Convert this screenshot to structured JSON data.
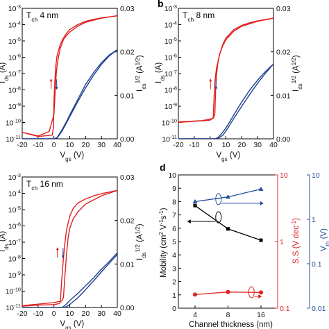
{
  "chart_data": [
    {
      "panel": "a",
      "type": "line",
      "title": "T_ch 4 nm",
      "title_parts": [
        "T",
        "ch",
        " 4 nm"
      ],
      "panel_letter": "",
      "xlabel": [
        "V",
        "gs",
        " (V)"
      ],
      "ylabel_left": [
        "I",
        "ds",
        " (A)"
      ],
      "ylabel_right": [
        "I",
        "ds",
        "1/2",
        " (A",
        "1/2",
        ")"
      ],
      "xlim": [
        -20,
        40
      ],
      "ylim_left_log": [
        1e-11,
        0.001
      ],
      "ylim_right": [
        0,
        0.03
      ],
      "x_ticks": [
        "-20",
        "-10",
        "0",
        "10",
        "20",
        "30",
        "40"
      ],
      "y_left_ticks": [
        "10-3",
        "10-4",
        "10-5",
        "10-6",
        "10-7",
        "10-8",
        "10-9",
        "10-10",
        "10-11"
      ],
      "y_right_ticks": [
        "0.00",
        "0.01",
        "0.02",
        "0.03"
      ],
      "series": [
        {
          "axis": "left",
          "color": "#e02020",
          "forward": {
            "x": [
              -20,
              -10,
              -3,
              -1,
              -0.2,
              0,
              0.5,
              1,
              2,
              4,
              6,
              8,
              10,
              15,
              20,
              25,
              30,
              35,
              40
            ],
            "y": [
              2.5e-11,
              1.4e-11,
              1.6e-11,
              1.7e-11,
              6e-11,
              2e-09,
              2e-08,
              2e-07,
              1.3e-06,
              6e-06,
              1.5e-05,
              3e-05,
              5e-05,
              0.0001,
              0.00016,
              0.00021,
              0.00026,
              0.0003,
              0.00035
            ]
          },
          "reverse": {
            "x": [
              40,
              30,
              20,
              15,
              10,
              8,
              6,
              4,
              3,
              2,
              1.5,
              1,
              0.5,
              0,
              -3,
              -10,
              -20
            ],
            "y": [
              0.00035,
              0.00025,
              0.00014,
              8e-05,
              3.5e-05,
              2.2e-05,
              1.2e-05,
              3.5e-06,
              1.2e-06,
              3e-07,
              1e-07,
              2e-08,
              2e-09,
              3e-10,
              2.8e-11,
              1.5e-11,
              2.5e-11
            ]
          }
        },
        {
          "axis": "right",
          "color": "#1f3f8f",
          "forward": {
            "x": [
              -20,
              -5,
              0,
              2,
              5,
              8,
              10,
              15,
              20,
              25,
              30,
              35,
              40
            ],
            "y": [
              0,
              0,
              0,
              0.0003,
              0.002,
              0.004,
              0.0055,
              0.009,
              0.0125,
              0.0152,
              0.0175,
              0.0193,
              0.0205
            ]
          },
          "reverse": {
            "x": [
              40,
              35,
              30,
              25,
              20,
              15,
              10,
              8,
              5,
              2,
              0,
              -5,
              -20
            ],
            "y": [
              0.0205,
              0.0191,
              0.0171,
              0.0146,
              0.0117,
              0.0085,
              0.0051,
              0.0037,
              0.0017,
              0.0002,
              0,
              0,
              0
            ]
          }
        }
      ],
      "arrow_markers": true
    },
    {
      "panel": "b",
      "type": "line",
      "title": "T_ch 8 nm",
      "title_parts": [
        "T",
        "ch",
        " 8 nm"
      ],
      "panel_letter": "b",
      "xlabel": [
        "V",
        "gs",
        " (V)"
      ],
      "ylabel_left": [
        "I",
        "ds",
        " (A)"
      ],
      "ylabel_right": [
        "I",
        "ds",
        "1/2",
        " (A",
        "1/2",
        ")"
      ],
      "xlim": [
        -20,
        40
      ],
      "ylim_left_log": [
        1e-11,
        0.001
      ],
      "ylim_right": [
        0,
        0.03
      ],
      "x_ticks": [
        "-20",
        "-10",
        "0",
        "10",
        "20",
        "30",
        "40"
      ],
      "y_left_ticks": [
        "10-3",
        "10-4",
        "10-5",
        "10-6",
        "10-7",
        "10-8",
        "10-9",
        "10-10",
        "10-11"
      ],
      "y_right_ticks": [
        "0.00",
        "0.01",
        "0.02",
        "0.03"
      ],
      "series": [
        {
          "axis": "left",
          "color": "#e02020",
          "forward": {
            "x": [
              -20,
              -10,
              -3,
              0,
              1,
              2,
              2.5,
              3,
              4,
              6,
              8,
              10,
              15,
              20,
              25,
              30,
              35,
              40
            ],
            "y": [
              1e-10,
              1.2e-10,
              1.3e-10,
              1.4e-10,
              1.6e-10,
              2e-10,
              3e-09,
              3e-08,
              2e-07,
              1.5e-06,
              6e-06,
              1.5e-05,
              5e-05,
              9e-05,
              0.00013,
              0.00017,
              0.00021,
              0.00025
            ]
          },
          "reverse": {
            "x": [
              40,
              30,
              20,
              15,
              10,
              8,
              6,
              5,
              4,
              3.5,
              3,
              2,
              -5,
              -20
            ],
            "y": [
              0.00025,
              0.00016,
              8e-05,
              4e-05,
              1.2e-05,
              5e-06,
              1.5e-06,
              5e-07,
              8e-08,
              1e-08,
              3e-10,
              1.8e-10,
              1.3e-10,
              1.1e-10
            ]
          }
        },
        {
          "axis": "right",
          "color": "#1f3f8f",
          "forward": {
            "x": [
              -20,
              0,
              3,
              5,
              8,
              10,
              15,
              20,
              25,
              30,
              35,
              40
            ],
            "y": [
              0,
              0,
              0,
              0.0003,
              0.0015,
              0.0025,
              0.0055,
              0.0085,
              0.0112,
              0.0135,
              0.0155,
              0.0172
            ]
          },
          "reverse": {
            "x": [
              40,
              35,
              30,
              25,
              20,
              15,
              10,
              8,
              5,
              3,
              0,
              -20
            ],
            "y": [
              0.0172,
              0.0151,
              0.0128,
              0.0102,
              0.0075,
              0.0047,
              0.0018,
              0.0008,
              0.0001,
              0,
              0,
              0
            ]
          }
        }
      ],
      "arrow_markers": true
    },
    {
      "panel": "c",
      "type": "line",
      "title": "T_ch 16 nm",
      "title_parts": [
        "T",
        "ch",
        " 16 nm"
      ],
      "panel_letter": "",
      "xlabel": [
        "V",
        "gs",
        " (V)"
      ],
      "ylabel_left": [
        "I",
        "ds",
        " (A)"
      ],
      "ylabel_right": [
        "I",
        "ds",
        "1/2",
        " (A",
        "1/2",
        ")"
      ],
      "xlim": [
        -20,
        40
      ],
      "ylim_left_log": [
        1e-11,
        0.001
      ],
      "ylim_right": [
        0,
        0.03
      ],
      "x_ticks": [
        "-20",
        "-10",
        "0",
        "10",
        "20",
        "30",
        "40"
      ],
      "y_left_ticks": [
        "10-3",
        "10-4",
        "10-5",
        "10-6",
        "10-7",
        "10-8",
        "10-9",
        "10-10",
        "10-11"
      ],
      "y_right_ticks": [
        "0.00",
        "0.01",
        "0.02",
        "0.03"
      ],
      "series": [
        {
          "axis": "left",
          "color": "#e02020",
          "forward": {
            "x": [
              -20,
              -10,
              0,
              3,
              4,
              5,
              6,
              7,
              8,
              10,
              12,
              15,
              20,
              25,
              30,
              35,
              40
            ],
            "y": [
              1.2e-11,
              1.4e-11,
              1.5e-11,
              1.7e-11,
              2e-11,
              6e-10,
              1e-08,
              1e-07,
              6e-07,
              4e-06,
              1.1e-05,
              2.5e-05,
              4.5e-05,
              7e-05,
              9.5e-05,
              0.00012,
              0.00015
            ]
          },
          "reverse": {
            "x": [
              40,
              30,
              20,
              15,
              12,
              10,
              9,
              8,
              7,
              6,
              5,
              0,
              -10,
              -20
            ],
            "y": [
              0.00015,
              7e-05,
              2.2e-05,
              7e-06,
              2.5e-06,
              7e-07,
              2e-07,
              2e-08,
              1e-09,
              4e-11,
              2.5e-11,
              2e-11,
              1.6e-11,
              1.3e-11
            ]
          }
        },
        {
          "axis": "right",
          "color": "#1f3f8f",
          "forward": {
            "x": [
              -20,
              0,
              5,
              6,
              8,
              10,
              15,
              20,
              25,
              30,
              35,
              40
            ],
            "y": [
              0,
              0,
              0,
              0.0002,
              0.0008,
              0.0016,
              0.0032,
              0.005,
              0.0068,
              0.0088,
              0.0106,
              0.0126
            ]
          },
          "reverse": {
            "x": [
              40,
              35,
              30,
              25,
              20,
              15,
              10,
              8,
              6,
              5,
              0,
              -20
            ],
            "y": [
              0.0122,
              0.0102,
              0.0082,
              0.0061,
              0.0041,
              0.0022,
              0.0007,
              0.0002,
              0,
              0,
              0,
              0
            ]
          }
        }
      ],
      "arrow_markers": true
    },
    {
      "panel": "d",
      "type": "scatter",
      "panel_letter": "d",
      "xlabel": "Channel thickness (nm)",
      "x_categories": [
        "4",
        "8",
        "16"
      ],
      "x_values": [
        4,
        8,
        16
      ],
      "xscale": "log2",
      "y1": {
        "label": [
          "Mobility (cm",
          "2",
          " V",
          "-1",
          "s",
          "-1",
          ")"
        ],
        "lim": [
          0,
          10
        ],
        "ticks": [
          "0",
          "1",
          "2",
          "3",
          "4",
          "5",
          "6",
          "7",
          "8",
          "9",
          "10"
        ],
        "color": "#000000"
      },
      "y2": {
        "label": [
          "S.S (V dec",
          "-1",
          ")"
        ],
        "scale": "log",
        "lim": [
          0.1,
          10
        ],
        "ticks": [
          "0.1",
          "1",
          "10"
        ],
        "color": "#e02020"
      },
      "y3": {
        "label": [
          "V",
          "th",
          " (V)"
        ],
        "scale": "log",
        "lim": [
          0.01,
          10
        ],
        "ticks": [
          "0.01",
          "0.1",
          "1",
          "10"
        ],
        "color": "#1f4e9a"
      },
      "series": [
        {
          "name": "",
          "axis": "y1",
          "color": "#000000",
          "marker": "square",
          "values": [
            7.7,
            5.95,
            5.1
          ]
        },
        {
          "name": "",
          "axis": "y2",
          "color": "#e02020",
          "marker": "circle",
          "values": [
            0.16,
            0.175,
            0.172
          ]
        },
        {
          "name": "",
          "axis": "y3",
          "color": "#1f4e9a",
          "marker": "triangle",
          "values": [
            2.5,
            3.2,
            4.8
          ]
        }
      ]
    }
  ]
}
